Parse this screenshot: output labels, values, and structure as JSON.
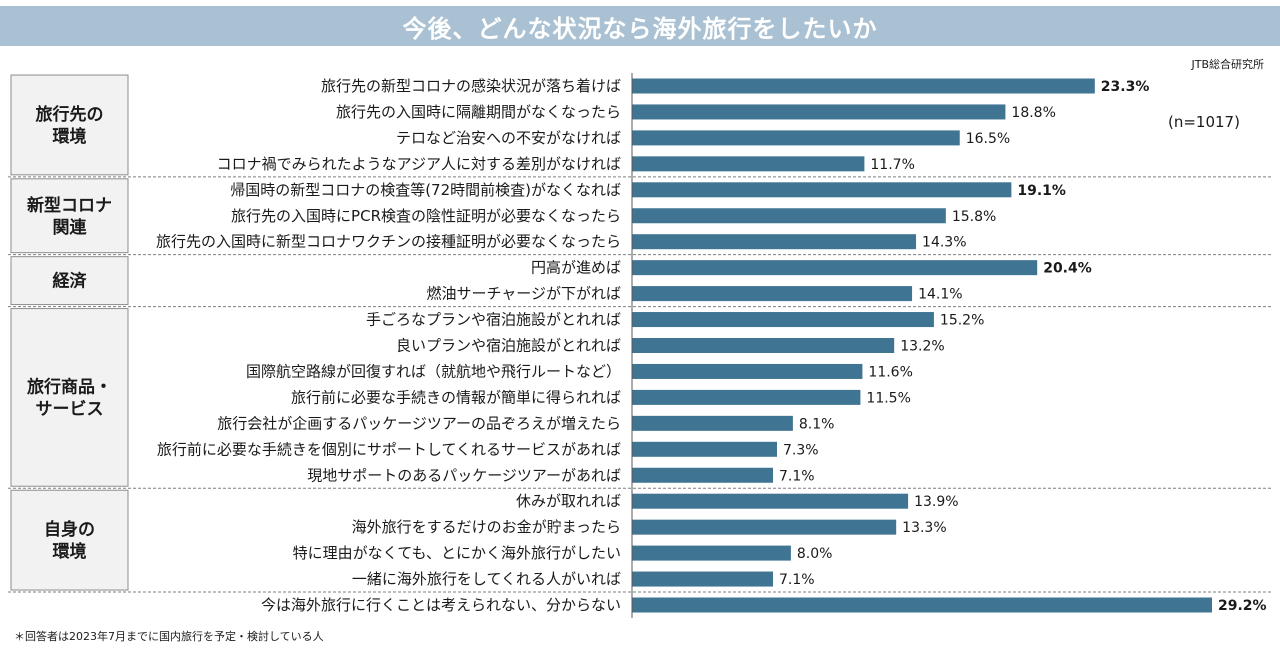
{
  "title": "今後、どんな状況なら海外旅行をしたいか",
  "source": "JTB総合研究所",
  "sample_note": "(n=1017)",
  "footnote": "＊回答者は2023年7月までに国内旅行を予定・検討している人",
  "colors": {
    "title_bg": "#a9c1d2",
    "bar": "#3f7493",
    "group_box_bg": "#f2f2f2",
    "group_box_border": "#8c8c8c"
  },
  "chart_data": {
    "type": "bar",
    "orientation": "horizontal",
    "unit": "%",
    "xlim": [
      0,
      30
    ],
    "groups": [
      {
        "name": "旅行先の\n環境",
        "items": [
          {
            "label": "旅行先の新型コロナの感染状況が落ち着けば",
            "value": 23.3,
            "value_text": "23.3%",
            "bold": true
          },
          {
            "label": "旅行先の入国時に隔離期間がなくなったら",
            "value": 18.8,
            "value_text": "18.8%",
            "bold": false
          },
          {
            "label": "テロなど治安への不安がなければ",
            "value": 16.5,
            "value_text": "16.5%",
            "bold": false
          },
          {
            "label": "コロナ禍でみられたようなアジア人に対する差別がなければ",
            "value": 11.7,
            "value_text": "11.7%",
            "bold": false
          }
        ]
      },
      {
        "name": "新型コロナ\n関連",
        "items": [
          {
            "label": "帰国時の新型コロナの検査等(72時間前検査)がなくなれば",
            "value": 19.1,
            "value_text": "19.1%",
            "bold": true
          },
          {
            "label": "旅行先の入国時にPCR検査の陰性証明が必要なくなったら",
            "value": 15.8,
            "value_text": "15.8%",
            "bold": false
          },
          {
            "label": "旅行先の入国時に新型コロナワクチンの接種証明が必要なくなったら",
            "value": 14.3,
            "value_text": "14.3%",
            "bold": false
          }
        ]
      },
      {
        "name": "経済",
        "items": [
          {
            "label": "円高が進めば",
            "value": 20.4,
            "value_text": "20.4%",
            "bold": true
          },
          {
            "label": "燃油サーチャージが下がれば",
            "value": 14.1,
            "value_text": "14.1%",
            "bold": false
          }
        ]
      },
      {
        "name": "旅行商品・\nサービス",
        "items": [
          {
            "label": "手ごろなプランや宿泊施設がとれれば",
            "value": 15.2,
            "value_text": "15.2%",
            "bold": false
          },
          {
            "label": "良いプランや宿泊施設がとれれば",
            "value": 13.2,
            "value_text": "13.2%",
            "bold": false
          },
          {
            "label": "国際航空路線が回復すれば（就航地や飛行ルートなど）",
            "value": 11.6,
            "value_text": "11.6%",
            "bold": false
          },
          {
            "label": "旅行前に必要な手続きの情報が簡単に得られれば",
            "value": 11.5,
            "value_text": "11.5%",
            "bold": false
          },
          {
            "label": "旅行会社が企画するパッケージツアーの品ぞろえが増えたら",
            "value": 8.1,
            "value_text": "8.1%",
            "bold": false
          },
          {
            "label": "旅行前に必要な手続きを個別にサポートしてくれるサービスがあれば",
            "value": 7.3,
            "value_text": "7.3%",
            "bold": false
          },
          {
            "label": "現地サポートのあるパッケージツアーがあれば",
            "value": 7.1,
            "value_text": "7.1%",
            "bold": false
          }
        ]
      },
      {
        "name": "自身の\n環境",
        "items": [
          {
            "label": "休みが取れれば",
            "value": 13.9,
            "value_text": "13.9%",
            "bold": false
          },
          {
            "label": "海外旅行をするだけのお金が貯まったら",
            "value": 13.3,
            "value_text": "13.3%",
            "bold": false
          },
          {
            "label": "特に理由がなくても、とにかく海外旅行がしたい",
            "value": 8.0,
            "value_text": "8.0%",
            "bold": false
          },
          {
            "label": "一緒に海外旅行をしてくれる人がいれば",
            "value": 7.1,
            "value_text": "7.1%",
            "bold": false
          }
        ]
      },
      {
        "name": "",
        "items": [
          {
            "label": "今は海外旅行に行くことは考えられない、分からない",
            "value": 29.2,
            "value_text": "29.2%",
            "bold": true
          }
        ]
      }
    ]
  }
}
